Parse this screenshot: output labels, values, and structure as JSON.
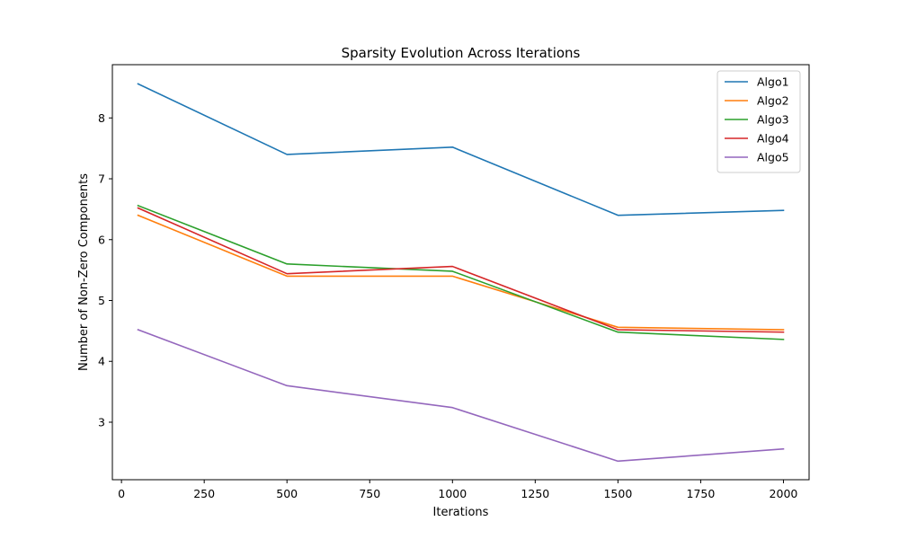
{
  "chart_data": {
    "type": "line",
    "title": "Sparsity Evolution Across Iterations",
    "xlabel": "Iterations",
    "ylabel": "Number of Non-Zero Components",
    "x": [
      50,
      500,
      1000,
      1500,
      2000
    ],
    "xlim": [
      -27.5,
      2077.5
    ],
    "ylim": [
      2.055,
      8.875
    ],
    "xticks": [
      0,
      250,
      500,
      750,
      1000,
      1250,
      1500,
      1750,
      2000
    ],
    "yticks": [
      3,
      4,
      5,
      6,
      7,
      8
    ],
    "grid": false,
    "legend_position": "top-right",
    "series": [
      {
        "name": "Algo1",
        "color": "#1f77b4",
        "values": [
          8.56,
          7.4,
          7.52,
          6.4,
          6.48
        ]
      },
      {
        "name": "Algo2",
        "color": "#ff7f0e",
        "values": [
          6.4,
          5.4,
          5.4,
          4.56,
          4.52
        ]
      },
      {
        "name": "Algo3",
        "color": "#2ca02c",
        "values": [
          6.56,
          5.6,
          5.48,
          4.48,
          4.36
        ]
      },
      {
        "name": "Algo4",
        "color": "#d62728",
        "values": [
          6.52,
          5.44,
          5.56,
          4.52,
          4.48
        ]
      },
      {
        "name": "Algo5",
        "color": "#9467bd",
        "values": [
          4.52,
          3.6,
          3.24,
          2.36,
          2.56
        ]
      }
    ]
  }
}
